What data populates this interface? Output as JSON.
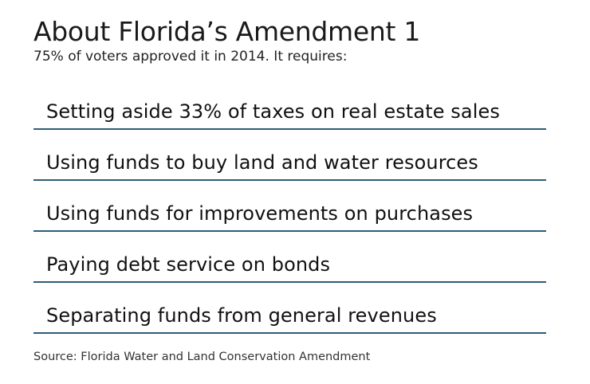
{
  "header": {
    "title": "About Florida’s Amendment 1",
    "subtitle": "75% of voters approved it in 2014. It requires:"
  },
  "requirements": [
    {
      "label": "Setting aside 33% of taxes on real estate sales"
    },
    {
      "label": "Using funds to buy land and water resources"
    },
    {
      "label": "Using funds for improvements on purchases"
    },
    {
      "label": "Paying debt service on bonds"
    },
    {
      "label": "Separating funds from general revenues"
    }
  ],
  "footer": {
    "source": "Source: Florida Water and Land Conservation Amendment"
  },
  "colors": {
    "divider": "#2f5c78",
    "text": "#1a1a1a",
    "background": "#ffffff"
  }
}
